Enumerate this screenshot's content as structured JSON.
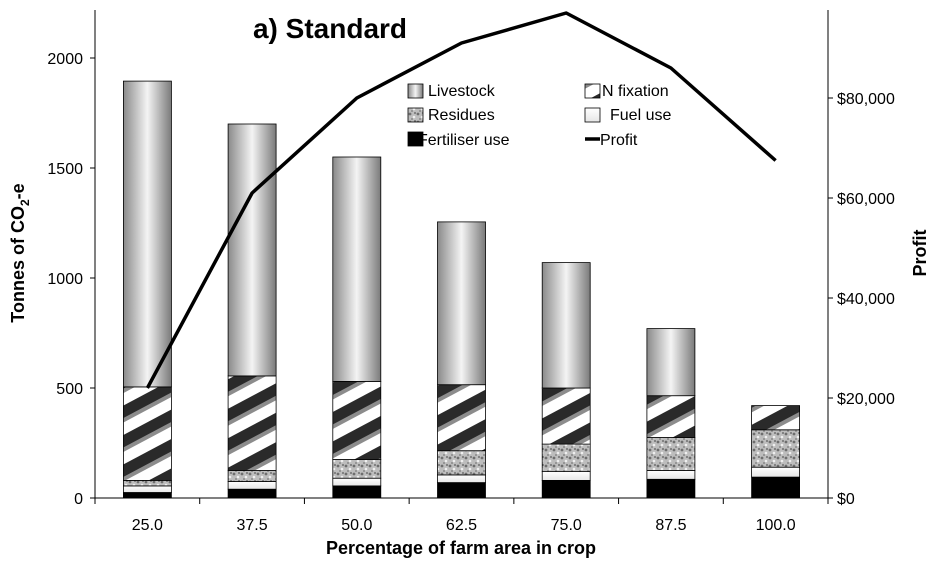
{
  "chart_data": {
    "type": "bar",
    "title": "a) Standard",
    "xlabel": "Percentage of farm area in crop",
    "ylabel": "Tonnes of CO",
    "ylabel_sub": "2",
    "ylabel_suffix": "-e",
    "y2label": "Profit",
    "categories": [
      "25.0",
      "37.5",
      "50.0",
      "62.5",
      "75.0",
      "87.5",
      "100.0"
    ],
    "ylim": [
      0,
      2200
    ],
    "y_ticks": [
      "0",
      "500",
      "1000",
      "1500",
      "2000"
    ],
    "y2lim": [
      0,
      96800
    ],
    "y2_ticks": [
      "$0",
      "$20,000",
      "$40,000",
      "$60,000",
      "$80,000"
    ],
    "series": [
      {
        "name": "Fertiliser use",
        "values": [
          25,
          40,
          55,
          70,
          80,
          85,
          95
        ]
      },
      {
        "name": "Fuel use",
        "values": [
          30,
          35,
          35,
          35,
          40,
          40,
          45
        ]
      },
      {
        "name": "Residues",
        "values": [
          25,
          50,
          85,
          110,
          125,
          150,
          170
        ]
      },
      {
        "name": "N fixation",
        "values": [
          425,
          430,
          355,
          300,
          255,
          190,
          110
        ]
      },
      {
        "name": "Livestock",
        "values": [
          1390,
          1145,
          1020,
          740,
          570,
          305,
          0
        ]
      },
      {
        "name": "Profit",
        "axis": "right",
        "values": [
          22000,
          61000,
          80000,
          91000,
          97000,
          86000,
          67500
        ]
      }
    ],
    "legend": {
      "position": "top-center",
      "entries": [
        "Livestock",
        "N fixation",
        "Residues",
        "Fuel use",
        "Fertiliser use",
        "Profit"
      ]
    },
    "grid": false
  }
}
